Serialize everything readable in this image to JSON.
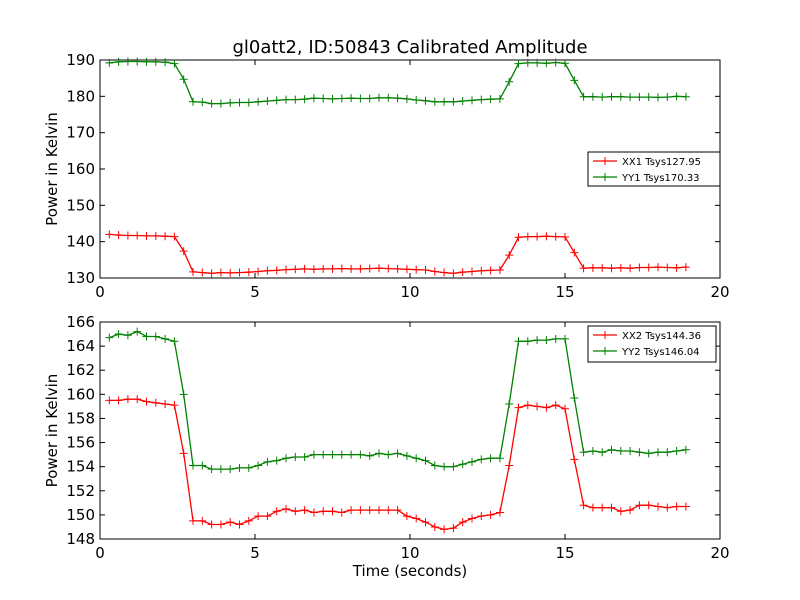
{
  "figure": {
    "title": "gl0att2, ID:50843 Calibrated Amplitude"
  },
  "chart_data": [
    {
      "type": "line",
      "title": "gl0att2, ID:50843 Calibrated Amplitude",
      "xlabel": "",
      "ylabel": "Power in Kelvin",
      "xlim": [
        0,
        20
      ],
      "ylim": [
        130,
        190
      ],
      "xticks": [
        0,
        5,
        10,
        15,
        20
      ],
      "yticks": [
        130,
        140,
        150,
        160,
        170,
        180,
        190
      ],
      "grid": false,
      "legend": "center-right",
      "marker": "+",
      "x": [
        0.3,
        0.6,
        0.9,
        1.2,
        1.5,
        1.8,
        2.1,
        2.4,
        2.7,
        3.0,
        3.3,
        3.6,
        3.9,
        4.2,
        4.5,
        4.8,
        5.1,
        5.4,
        5.7,
        6.0,
        6.3,
        6.6,
        6.9,
        7.2,
        7.5,
        7.8,
        8.1,
        8.4,
        8.7,
        9.0,
        9.3,
        9.6,
        9.9,
        10.2,
        10.5,
        10.8,
        11.1,
        11.4,
        11.7,
        12.0,
        12.3,
        12.6,
        12.9,
        13.2,
        13.5,
        13.8,
        14.1,
        14.4,
        14.7,
        15.0,
        15.3,
        15.6,
        15.9,
        16.2,
        16.5,
        16.8,
        17.1,
        17.4,
        17.7,
        18.0,
        18.3,
        18.6,
        18.9
      ],
      "series": [
        {
          "name": "XX1 Tsys127.95",
          "color": "#ff0000",
          "values": [
            142,
            141.8,
            141.7,
            141.7,
            141.6,
            141.6,
            141.5,
            141.4,
            137.4,
            131.7,
            131.5,
            131.3,
            131.5,
            131.4,
            131.5,
            131.6,
            131.8,
            132,
            132.1,
            132.3,
            132.4,
            132.5,
            132.4,
            132.5,
            132.5,
            132.6,
            132.5,
            132.5,
            132.6,
            132.7,
            132.6,
            132.5,
            132.4,
            132.3,
            132.2,
            131.8,
            131.5,
            131.3,
            131.6,
            131.8,
            132,
            132.1,
            132.2,
            136.3,
            141.2,
            141.4,
            141.4,
            141.5,
            141.4,
            141.3,
            137,
            132.7,
            132.8,
            132.8,
            132.7,
            132.8,
            132.7,
            132.9,
            132.9,
            133,
            132.9,
            132.8,
            133
          ]
        },
        {
          "name": "YY1 Tsys170.33",
          "color": "#008000",
          "values": [
            189.2,
            189.5,
            189.6,
            189.6,
            189.5,
            189.5,
            189.4,
            189,
            184.7,
            178.5,
            178.4,
            178,
            178,
            178.2,
            178.3,
            178.3,
            178.5,
            178.7,
            178.9,
            179.1,
            179.1,
            179.2,
            179.5,
            179.4,
            179.3,
            179.4,
            179.5,
            179.4,
            179.4,
            179.6,
            179.6,
            179.5,
            179.3,
            179,
            178.8,
            178.5,
            178.5,
            178.5,
            178.7,
            178.9,
            179.1,
            179.2,
            179.3,
            184,
            189,
            189.2,
            189.2,
            189.1,
            189.3,
            189.1,
            184.4,
            179.9,
            179.9,
            179.8,
            179.9,
            179.9,
            179.8,
            179.8,
            179.8,
            179.7,
            179.8,
            180,
            179.9
          ]
        }
      ]
    },
    {
      "type": "line",
      "title": "",
      "xlabel": "Time (seconds)",
      "ylabel": "Power in Kelvin",
      "xlim": [
        0,
        20
      ],
      "ylim": [
        148,
        166
      ],
      "xticks": [
        0,
        5,
        10,
        15,
        20
      ],
      "yticks": [
        148,
        150,
        152,
        154,
        156,
        158,
        160,
        162,
        164,
        166
      ],
      "grid": false,
      "legend": "top-right",
      "marker": "+",
      "x": [
        0.3,
        0.6,
        0.9,
        1.2,
        1.5,
        1.8,
        2.1,
        2.4,
        2.7,
        3.0,
        3.3,
        3.6,
        3.9,
        4.2,
        4.5,
        4.8,
        5.1,
        5.4,
        5.7,
        6.0,
        6.3,
        6.6,
        6.9,
        7.2,
        7.5,
        7.8,
        8.1,
        8.4,
        8.7,
        9.0,
        9.3,
        9.6,
        9.9,
        10.2,
        10.5,
        10.8,
        11.1,
        11.4,
        11.7,
        12.0,
        12.3,
        12.6,
        12.9,
        13.2,
        13.5,
        13.8,
        14.1,
        14.4,
        14.7,
        15.0,
        15.3,
        15.6,
        15.9,
        16.2,
        16.5,
        16.8,
        17.1,
        17.4,
        17.7,
        18.0,
        18.3,
        18.6,
        18.9
      ],
      "series": [
        {
          "name": "XX2 Tsys144.36",
          "color": "#ff0000",
          "values": [
            159.5,
            159.5,
            159.6,
            159.6,
            159.4,
            159.3,
            159.2,
            159.1,
            155.1,
            149.5,
            149.5,
            149.2,
            149.2,
            149.4,
            149.2,
            149.5,
            149.9,
            149.9,
            150.3,
            150.5,
            150.3,
            150.4,
            150.2,
            150.3,
            150.3,
            150.2,
            150.4,
            150.4,
            150.4,
            150.4,
            150.4,
            150.4,
            149.9,
            149.7,
            149.4,
            149,
            148.8,
            148.9,
            149.4,
            149.7,
            149.9,
            150,
            150.2,
            154.1,
            158.9,
            159.1,
            159,
            158.9,
            159.1,
            158.8,
            154.6,
            150.8,
            150.6,
            150.6,
            150.6,
            150.3,
            150.4,
            150.8,
            150.8,
            150.7,
            150.6,
            150.7,
            150.7
          ]
        },
        {
          "name": "YY2 Tsys146.04",
          "color": "#008000",
          "values": [
            164.7,
            165,
            164.9,
            165.2,
            164.8,
            164.8,
            164.6,
            164.4,
            160,
            154.1,
            154.1,
            153.8,
            153.8,
            153.8,
            153.9,
            153.9,
            154.1,
            154.4,
            154.5,
            154.7,
            154.8,
            154.8,
            155,
            155,
            155,
            155,
            155,
            155,
            154.9,
            155.1,
            155,
            155.1,
            154.9,
            154.7,
            154.5,
            154.1,
            154,
            154,
            154.2,
            154.4,
            154.6,
            154.7,
            154.7,
            159.2,
            164.4,
            164.4,
            164.5,
            164.5,
            164.6,
            164.6,
            159.7,
            155.2,
            155.3,
            155.2,
            155.4,
            155.3,
            155.3,
            155.2,
            155.1,
            155.2,
            155.2,
            155.3,
            155.4
          ]
        }
      ]
    }
  ]
}
